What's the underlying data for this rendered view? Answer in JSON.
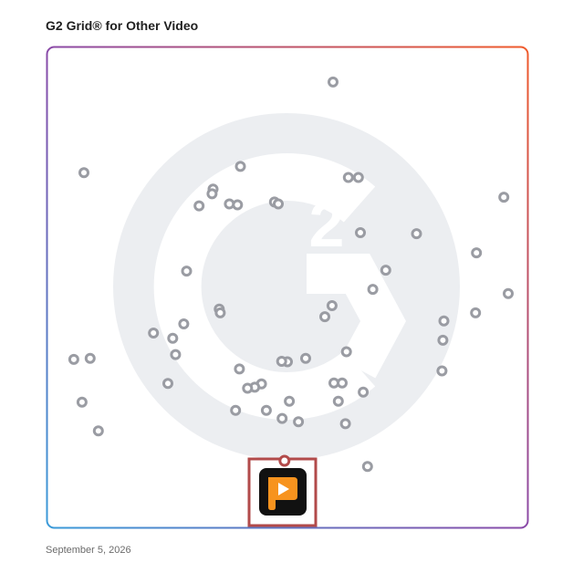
{
  "page": {
    "title": "G2 Grid® for Other Video",
    "date": "September 5, 2026"
  },
  "colors": {
    "border_top_left": "#6a3bb0",
    "border_top_right": "#f05a2a",
    "border_bottom_left": "#3a9bd9",
    "border_bottom_right": "#8e3aa8",
    "marker_stroke": "#9a9ca3",
    "highlight": "#b24a4a",
    "logo_orange": "#f7931e",
    "watermark": "#eceef1"
  },
  "icons": {
    "watermark": "g2-logo-watermark-icon",
    "product": "video-player-app-icon"
  },
  "chart_data": {
    "type": "scatter",
    "title": "G2 Grid® for Other Video",
    "xlim": [
      0,
      100
    ],
    "ylim": [
      0,
      100
    ],
    "xlabel": "",
    "ylabel": "",
    "grid": false,
    "quadrant_dividers": {
      "x": 50,
      "y": 50
    },
    "series": [
      {
        "points": [
          {
            "x": 59.5,
            "y": 92.8
          },
          {
            "x": 7.6,
            "y": 73.9
          },
          {
            "x": 40.2,
            "y": 75.2
          },
          {
            "x": 34.5,
            "y": 70.5
          },
          {
            "x": 34.3,
            "y": 69.5
          },
          {
            "x": 31.6,
            "y": 67.0
          },
          {
            "x": 37.9,
            "y": 67.4
          },
          {
            "x": 39.6,
            "y": 67.2
          },
          {
            "x": 47.3,
            "y": 67.8
          },
          {
            "x": 48.1,
            "y": 67.4
          },
          {
            "x": 62.7,
            "y": 72.9
          },
          {
            "x": 64.8,
            "y": 72.9
          },
          {
            "x": 65.2,
            "y": 61.4
          },
          {
            "x": 76.9,
            "y": 61.2
          },
          {
            "x": 95.1,
            "y": 68.8
          },
          {
            "x": 89.4,
            "y": 57.2
          },
          {
            "x": 70.5,
            "y": 53.6
          },
          {
            "x": 67.8,
            "y": 49.6
          },
          {
            "x": 29.0,
            "y": 53.4
          },
          {
            "x": 35.8,
            "y": 45.5
          },
          {
            "x": 36.0,
            "y": 44.7
          },
          {
            "x": 28.4,
            "y": 42.4
          },
          {
            "x": 22.1,
            "y": 40.5
          },
          {
            "x": 26.1,
            "y": 39.4
          },
          {
            "x": 26.7,
            "y": 36.0
          },
          {
            "x": 5.5,
            "y": 35.0
          },
          {
            "x": 8.9,
            "y": 35.2
          },
          {
            "x": 40.0,
            "y": 33.0
          },
          {
            "x": 50.0,
            "y": 34.5
          },
          {
            "x": 48.8,
            "y": 34.6
          },
          {
            "x": 53.8,
            "y": 35.2
          },
          {
            "x": 62.3,
            "y": 36.6
          },
          {
            "x": 57.8,
            "y": 43.9
          },
          {
            "x": 59.3,
            "y": 46.2
          },
          {
            "x": 82.2,
            "y": 32.6
          },
          {
            "x": 82.6,
            "y": 43.0
          },
          {
            "x": 82.4,
            "y": 39.0
          },
          {
            "x": 89.2,
            "y": 44.7
          },
          {
            "x": 96.0,
            "y": 48.7
          },
          {
            "x": 25.1,
            "y": 30.0
          },
          {
            "x": 44.6,
            "y": 29.9
          },
          {
            "x": 43.2,
            "y": 29.2
          },
          {
            "x": 41.7,
            "y": 29.0
          },
          {
            "x": 59.7,
            "y": 30.1
          },
          {
            "x": 61.4,
            "y": 30.1
          },
          {
            "x": 65.8,
            "y": 28.2
          },
          {
            "x": 60.6,
            "y": 26.3
          },
          {
            "x": 50.4,
            "y": 26.3
          },
          {
            "x": 7.2,
            "y": 26.1
          },
          {
            "x": 39.2,
            "y": 24.4
          },
          {
            "x": 45.6,
            "y": 24.4
          },
          {
            "x": 48.9,
            "y": 22.7
          },
          {
            "x": 52.3,
            "y": 22.0
          },
          {
            "x": 62.1,
            "y": 21.6
          },
          {
            "x": 10.6,
            "y": 20.1
          },
          {
            "x": 66.7,
            "y": 12.7
          },
          {
            "x": 49.4,
            "y": 13.8
          }
        ]
      }
    ],
    "highlighted_point": {
      "x": 49.4,
      "y": 13.8
    }
  }
}
